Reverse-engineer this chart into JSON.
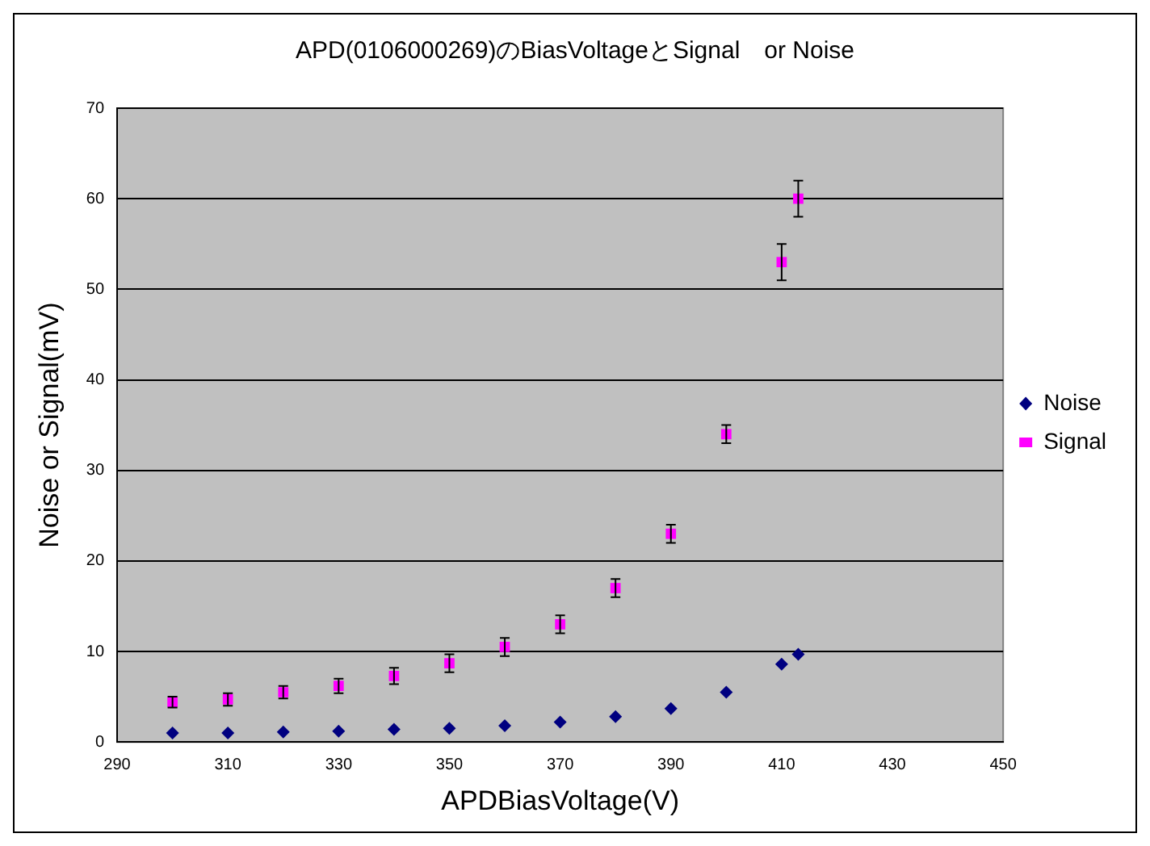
{
  "chart_data": {
    "type": "scatter",
    "title": "APD(0106000269)のBiasVoltageとSignal　or Noise",
    "xlabel": "APDBiasVoltage(V)",
    "ylabel": "Noise or Signal(mV)",
    "x": [
      300,
      310,
      320,
      330,
      340,
      350,
      360,
      370,
      380,
      390,
      400,
      410,
      413
    ],
    "series": [
      {
        "name": "Noise",
        "color": "#000080",
        "marker": "diamond",
        "values": [
          1.0,
          1.0,
          1.1,
          1.2,
          1.4,
          1.5,
          1.8,
          2.2,
          2.8,
          3.7,
          5.5,
          8.6,
          9.7
        ]
      },
      {
        "name": "Signal",
        "color": "#ff00ff",
        "marker": "square",
        "values": [
          4.4,
          4.7,
          5.5,
          6.2,
          7.3,
          8.7,
          10.5,
          13,
          17,
          23,
          34,
          53,
          60
        ],
        "errors": [
          0.6,
          0.7,
          0.7,
          0.8,
          0.9,
          1,
          1,
          1,
          1,
          1,
          1,
          2,
          2
        ]
      }
    ],
    "xlim": [
      290,
      450
    ],
    "xticks": [
      290,
      310,
      330,
      350,
      370,
      390,
      410,
      430,
      450
    ],
    "ylim": [
      0,
      70
    ],
    "yticks": [
      0,
      10,
      20,
      30,
      40,
      50,
      60,
      70
    ],
    "grid": "y",
    "legend": "right"
  }
}
